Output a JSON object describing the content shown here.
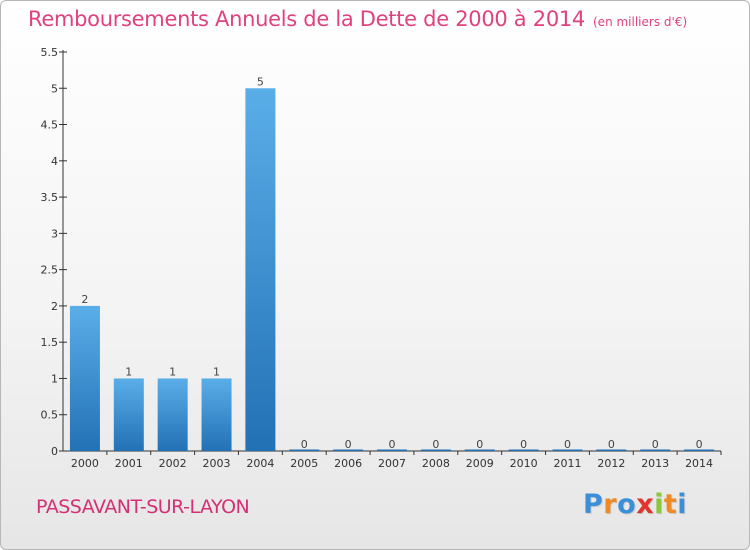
{
  "title": "Remboursements Annuels de la Dette de 2000 à 2014",
  "subtitle": "(en milliers d'€)",
  "commune": "PASSAVANT-SUR-LAYON",
  "logo": {
    "letters": [
      "P",
      "r",
      "o",
      "x",
      "i",
      "t",
      "i"
    ],
    "colors": [
      "#3a8fd8",
      "#f08a24",
      "#3a8fd8",
      "#e2342d",
      "#8cc63e",
      "#f08a24",
      "#3a8fd8"
    ]
  },
  "colors": {
    "bar_light": "#5aaee8",
    "bar_dark": "#2271b5",
    "title": "#e0417f"
  },
  "chart_data": {
    "type": "bar",
    "categories": [
      "2000",
      "2001",
      "2002",
      "2003",
      "2004",
      "2005",
      "2006",
      "2007",
      "2008",
      "2009",
      "2010",
      "2011",
      "2012",
      "2013",
      "2014"
    ],
    "values": [
      2,
      1,
      1,
      1,
      5,
      0,
      0,
      0,
      0,
      0,
      0,
      0,
      0,
      0,
      0
    ],
    "data_labels": [
      "2",
      "1",
      "1",
      "1",
      "5",
      "0",
      "0",
      "0",
      "0",
      "0",
      "0",
      "0",
      "0",
      "0",
      "0"
    ],
    "y_ticks": [
      {
        "value": 0,
        "label": "0"
      },
      {
        "value": 0.5,
        "label": "0.5"
      },
      {
        "value": 1,
        "label": "1"
      },
      {
        "value": 1.5,
        "label": "1.5"
      },
      {
        "value": 2,
        "label": "2"
      },
      {
        "value": 2.5,
        "label": "2.5"
      },
      {
        "value": 3,
        "label": "3"
      },
      {
        "value": 3.5,
        "label": "3.5"
      },
      {
        "value": 4,
        "label": "4"
      },
      {
        "value": 4.5,
        "label": "4.5"
      },
      {
        "value": 5,
        "label": "5"
      },
      {
        "value": 5.5,
        "label": "5.5"
      }
    ],
    "ylim": [
      0,
      5.5
    ],
    "grid": false,
    "legend": "none"
  }
}
